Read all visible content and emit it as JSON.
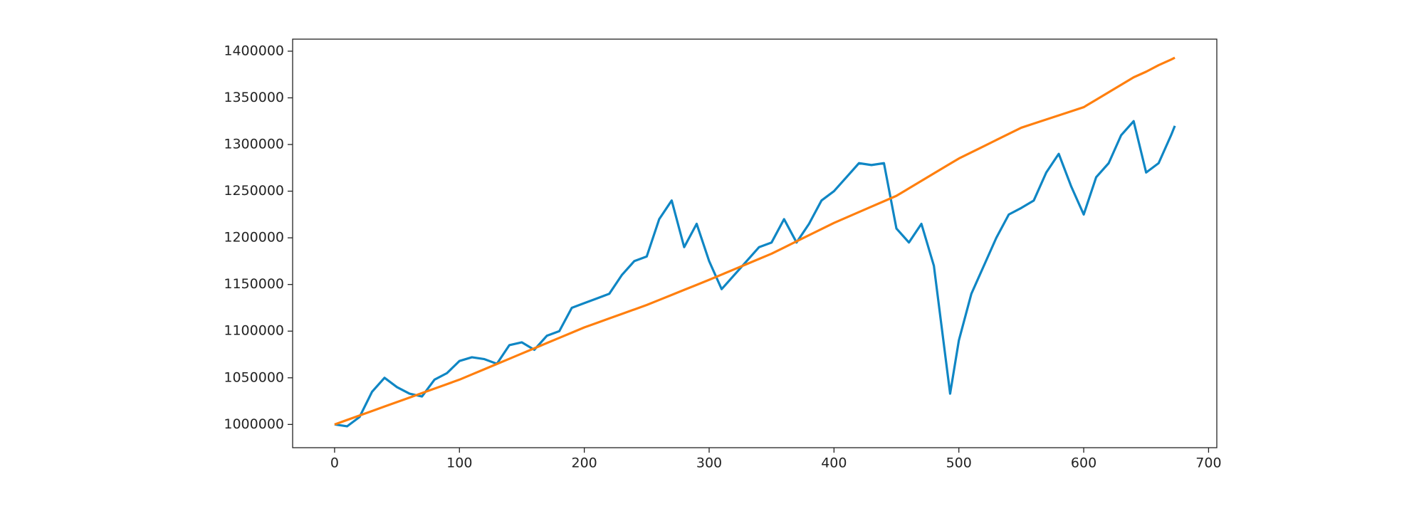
{
  "chart_data": {
    "type": "line",
    "x": [
      0,
      10,
      20,
      30,
      40,
      50,
      60,
      70,
      80,
      90,
      100,
      110,
      120,
      130,
      140,
      150,
      160,
      170,
      180,
      190,
      200,
      210,
      220,
      230,
      240,
      250,
      260,
      270,
      280,
      290,
      300,
      310,
      320,
      330,
      340,
      350,
      360,
      370,
      380,
      390,
      400,
      410,
      420,
      430,
      440,
      450,
      460,
      470,
      480,
      493,
      500,
      510,
      520,
      530,
      540,
      550,
      560,
      570,
      580,
      590,
      600,
      610,
      620,
      630,
      640,
      650,
      660,
      670,
      673
    ],
    "series": [
      {
        "color": "#0f86c4",
        "values": [
          1000000,
          998000,
          1008000,
          1035000,
          1050000,
          1040000,
          1033000,
          1030000,
          1048000,
          1055000,
          1068000,
          1072000,
          1070000,
          1065000,
          1085000,
          1088000,
          1080000,
          1095000,
          1100000,
          1125000,
          1130000,
          1135000,
          1140000,
          1160000,
          1175000,
          1180000,
          1220000,
          1240000,
          1190000,
          1215000,
          1175000,
          1145000,
          1160000,
          1175000,
          1190000,
          1195000,
          1220000,
          1195000,
          1215000,
          1240000,
          1250000,
          1265000,
          1280000,
          1278000,
          1280000,
          1210000,
          1195000,
          1215000,
          1170000,
          1033000,
          1090000,
          1140000,
          1170000,
          1200000,
          1225000,
          1232000,
          1240000,
          1270000,
          1290000,
          1255000,
          1225000,
          1265000,
          1280000,
          1310000,
          1325000,
          1270000,
          1280000,
          1310000,
          1320000
        ]
      },
      {
        "color": "#ff7f0e",
        "values": [
          1000000,
          1004800,
          1009600,
          1014400,
          1019200,
          1024000,
          1028800,
          1033600,
          1038400,
          1043200,
          1048000,
          1053600,
          1059200,
          1064800,
          1070400,
          1076000,
          1081600,
          1087200,
          1092800,
          1098400,
          1104000,
          1108800,
          1113600,
          1118400,
          1123200,
          1128000,
          1133400,
          1138800,
          1144200,
          1149600,
          1155000,
          1160600,
          1166200,
          1171800,
          1177400,
          1183000,
          1189600,
          1196200,
          1202800,
          1209400,
          1216000,
          1221800,
          1227600,
          1233400,
          1239200,
          1245000,
          1253000,
          1261000,
          1269000,
          1279400,
          1285000,
          1291600,
          1298200,
          1304800,
          1311400,
          1318000,
          1322400,
          1326800,
          1331200,
          1335600,
          1340000,
          1348000,
          1356000,
          1364000,
          1372000,
          1378000,
          1385000,
          1391000,
          1393000
        ]
      }
    ],
    "xlim": [
      -33.6,
      706.6
    ],
    "ylim": [
      975100,
      1412900
    ],
    "xticks": [
      0,
      100,
      200,
      300,
      400,
      500,
      600,
      700
    ],
    "yticks": [
      1000000,
      1050000,
      1100000,
      1150000,
      1200000,
      1250000,
      1300000,
      1350000,
      1400000
    ]
  }
}
